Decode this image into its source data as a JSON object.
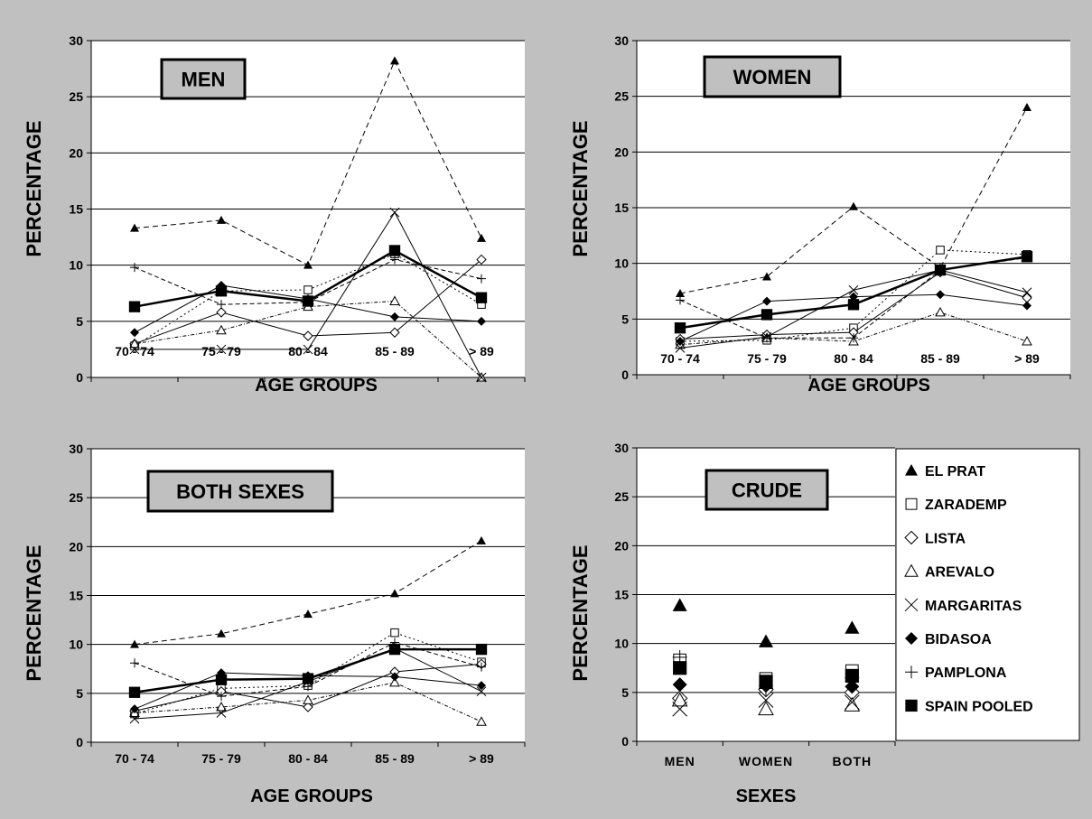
{
  "colors": {
    "background": "#c0c0c0",
    "plot_area": "#ffffff",
    "series": "#000000",
    "title_box": "#c0c0c0"
  },
  "chart_data": [
    {
      "type": "line",
      "title": "MEN",
      "xlabel": "AGE GROUPS",
      "ylabel": "PERCENTAGE",
      "ylim": [
        0,
        30
      ],
      "yticks": [
        "0",
        "5",
        "10",
        "15",
        "20",
        "25",
        "30"
      ],
      "grid": true,
      "categories": [
        "70 - 74",
        "75 - 79",
        "80 - 84",
        "85 - 89",
        "> 89"
      ],
      "series": [
        {
          "name": "EL PRAT",
          "values": [
            13.3,
            14.0,
            10.0,
            28.2,
            12.4
          ]
        },
        {
          "name": "ZARADEMP",
          "values": [
            2.8,
            7.7,
            7.8,
            11.0,
            6.5
          ]
        },
        {
          "name": "LISTA",
          "values": [
            3.0,
            5.8,
            3.7,
            4.0,
            10.5
          ]
        },
        {
          "name": "AREVALO",
          "values": [
            3.0,
            4.2,
            6.3,
            6.8,
            0.0
          ]
        },
        {
          "name": "MARGARITAS",
          "values": [
            2.5,
            2.5,
            2.5,
            14.7,
            0.0
          ]
        },
        {
          "name": "BIDASOA",
          "values": [
            4.0,
            8.2,
            7.0,
            5.4,
            5.0
          ]
        },
        {
          "name": "PAMPLONA",
          "values": [
            9.8,
            6.5,
            6.7,
            10.5,
            8.8
          ]
        },
        {
          "name": "SPAIN POOLED",
          "values": [
            6.3,
            7.7,
            6.8,
            11.3,
            7.1
          ]
        }
      ]
    },
    {
      "type": "line",
      "title": "WOMEN",
      "xlabel": "AGE GROUPS",
      "ylabel": "PERCENTAGE",
      "ylim": [
        0,
        30
      ],
      "yticks": [
        "0",
        "5",
        "10",
        "15",
        "20",
        "25",
        "30"
      ],
      "grid": true,
      "categories": [
        "70 - 74",
        "75 - 79",
        "80 - 84",
        "85 - 89",
        "> 89"
      ],
      "series": [
        {
          "name": "EL PRAT",
          "values": [
            7.3,
            8.8,
            15.1,
            9.6,
            24.0
          ]
        },
        {
          "name": "ZARADEMP",
          "values": [
            3.0,
            3.1,
            4.2,
            11.2,
            10.8
          ]
        },
        {
          "name": "LISTA",
          "values": [
            3.2,
            3.6,
            3.8,
            9.2,
            6.9
          ]
        },
        {
          "name": "AREVALO",
          "values": [
            2.7,
            3.3,
            3.0,
            5.6,
            3.0
          ]
        },
        {
          "name": "MARGARITAS",
          "values": [
            2.4,
            3.4,
            7.6,
            9.4,
            7.4
          ]
        },
        {
          "name": "BIDASOA",
          "values": [
            3.0,
            6.6,
            7.0,
            7.2,
            6.2
          ]
        },
        {
          "name": "PAMPLONA",
          "values": [
            6.7,
            3.3,
            3.3,
            9.4,
            10.5
          ]
        },
        {
          "name": "SPAIN POOLED",
          "values": [
            4.2,
            5.4,
            6.3,
            9.4,
            10.6
          ]
        }
      ]
    },
    {
      "type": "line",
      "title": "BOTH SEXES",
      "xlabel": "AGE GROUPS",
      "ylabel": "PERCENTAGE",
      "ylim": [
        0,
        30
      ],
      "yticks": [
        "0",
        "5",
        "10",
        "15",
        "20",
        "25",
        "30"
      ],
      "grid": true,
      "categories": [
        "70 - 74",
        "75 - 79",
        "80 - 84",
        "85 - 89",
        "> 89"
      ],
      "series": [
        {
          "name": "EL PRAT",
          "values": [
            10.0,
            11.1,
            13.1,
            15.2,
            20.6
          ]
        },
        {
          "name": "ZARADEMP",
          "values": [
            2.9,
            5.5,
            5.8,
            11.2,
            8.2
          ]
        },
        {
          "name": "LISTA",
          "values": [
            3.2,
            5.2,
            3.6,
            7.2,
            8.0
          ]
        },
        {
          "name": "AREVALO",
          "values": [
            3.0,
            3.6,
            4.3,
            6.1,
            2.1
          ]
        },
        {
          "name": "MARGARITAS",
          "values": [
            2.4,
            3.0,
            6.2,
            9.6,
            5.2
          ]
        },
        {
          "name": "BIDASOA",
          "values": [
            3.4,
            7.1,
            6.8,
            6.7,
            5.8
          ]
        },
        {
          "name": "PAMPLONA",
          "values": [
            8.1,
            4.7,
            5.7,
            10.2,
            7.7
          ]
        },
        {
          "name": "SPAIN POOLED",
          "values": [
            5.1,
            6.4,
            6.5,
            9.5,
            9.5
          ]
        }
      ]
    },
    {
      "type": "scatter",
      "title": "CRUDE",
      "xlabel": "SEXES",
      "ylabel": "PERCENTAGE",
      "ylim": [
        0,
        30
      ],
      "yticks": [
        "0",
        "5",
        "10",
        "15",
        "20",
        "25",
        "30"
      ],
      "grid": true,
      "categories": [
        "MEN",
        "WOMEN",
        "BOTH"
      ],
      "legend_position": "right",
      "series": [
        {
          "name": "EL PRAT",
          "values": [
            13.9,
            10.2,
            11.6
          ]
        },
        {
          "name": "ZARADEMP",
          "values": [
            8.3,
            6.4,
            7.2
          ]
        },
        {
          "name": "LISTA",
          "values": [
            4.4,
            5.3,
            5.0
          ]
        },
        {
          "name": "AREVALO",
          "values": [
            4.2,
            3.3,
            3.7
          ]
        },
        {
          "name": "MARGARITAS",
          "values": [
            3.3,
            4.2,
            4.0
          ]
        },
        {
          "name": "BIDASOA",
          "values": [
            5.8,
            5.7,
            5.6
          ]
        },
        {
          "name": "PAMPLONA",
          "values": [
            8.6,
            5.4,
            6.5
          ]
        },
        {
          "name": "SPAIN POOLED",
          "values": [
            7.5,
            6.1,
            6.7
          ]
        }
      ]
    }
  ]
}
